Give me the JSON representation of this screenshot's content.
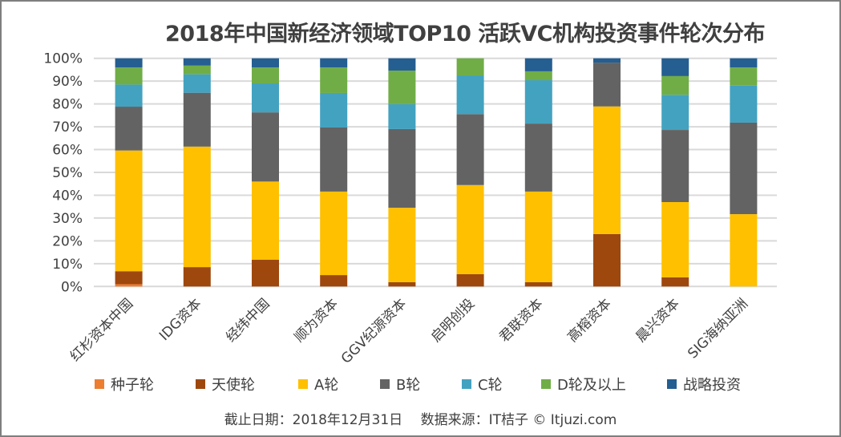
{
  "chart_data": {
    "type": "bar",
    "stacked": true,
    "percent_stacked": true,
    "title": "2018年中国新经济领域TOP10 活跃VC机构投资事件轮次分布",
    "xlabel": "",
    "ylabel": "",
    "ylim": [
      0,
      100
    ],
    "yticks": [
      "0%",
      "10%",
      "20%",
      "30%",
      "40%",
      "50%",
      "60%",
      "70%",
      "80%",
      "90%",
      "100%"
    ],
    "grid": true,
    "legend_position": "bottom",
    "categories": [
      "红杉资本中国",
      "IDG资本",
      "经纬中国",
      "顺为资本",
      "GGV纪源资本",
      "启明创投",
      "君联资本",
      "高榕资本",
      "晨兴资本",
      "SIG海纳亚洲"
    ],
    "series": [
      {
        "name": "种子轮",
        "color": "#ED7D31",
        "values": [
          1.0,
          0,
          0,
          0,
          0,
          0,
          0,
          0,
          0,
          0
        ]
      },
      {
        "name": "天使轮",
        "color": "#9E480E",
        "values": [
          5.7,
          8.5,
          11.7,
          5.0,
          1.9,
          5.4,
          1.9,
          23.0,
          4.0,
          0
        ]
      },
      {
        "name": "A轮",
        "color": "#FFC000",
        "values": [
          52.9,
          52.8,
          34.3,
          36.6,
          32.6,
          39.1,
          39.7,
          55.9,
          33.0,
          31.7
        ]
      },
      {
        "name": "B轮",
        "color": "#636363",
        "values": [
          19.2,
          23.6,
          30.3,
          28.1,
          34.5,
          31.1,
          29.8,
          19.2,
          31.6,
          40.1
        ]
      },
      {
        "name": "C轮",
        "color": "#43A2C0",
        "values": [
          9.7,
          8.1,
          12.7,
          15.1,
          10.9,
          17.0,
          19.0,
          0,
          15.4,
          16.2
        ]
      },
      {
        "name": "D轮及以上",
        "color": "#70AD47",
        "values": [
          7.5,
          3.8,
          7.0,
          11.2,
          14.7,
          7.5,
          3.9,
          0,
          8.2,
          8.0
        ]
      },
      {
        "name": "战略投资",
        "color": "#255E91",
        "values": [
          4.0,
          3.2,
          4.0,
          4.0,
          5.4,
          0,
          5.7,
          1.9,
          7.8,
          4.0
        ]
      }
    ]
  },
  "footer": {
    "text": "截止日期：2018年12月31日　 数据来源：IT桔子 © Itjuzi.com"
  }
}
